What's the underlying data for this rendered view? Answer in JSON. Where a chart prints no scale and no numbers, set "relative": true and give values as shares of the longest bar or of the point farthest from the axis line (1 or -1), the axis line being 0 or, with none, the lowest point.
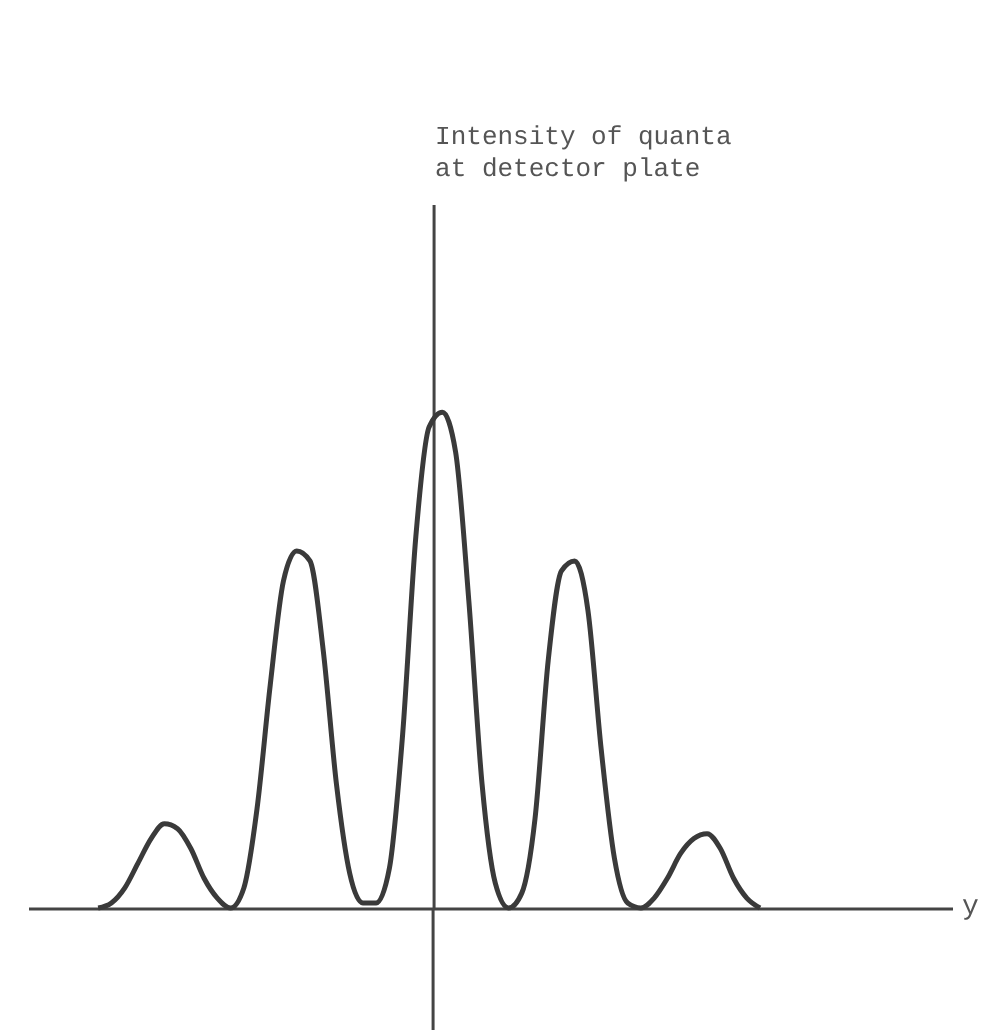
{
  "chart_data": {
    "type": "line",
    "relative": true,
    "annotations": [
      "Intensity of quanta\nat detector plate",
      "y"
    ],
    "color": "#3a3a3a",
    "categories": [
      null,
      null,
      null,
      null,
      null,
      null,
      null,
      null,
      null,
      null,
      null,
      null,
      null,
      null,
      null,
      null,
      null,
      null,
      null,
      null,
      null,
      null,
      null,
      null,
      null,
      null,
      null,
      null,
      null,
      null,
      null,
      null,
      null,
      null,
      null,
      null,
      null,
      null,
      null,
      null,
      null,
      null,
      null,
      null,
      null,
      null,
      null,
      null,
      null,
      null,
      null
    ],
    "values": [
      0,
      0.01,
      0.04,
      0.09,
      0.14,
      0.17,
      0.16,
      0.12,
      0.06,
      0.02,
      0,
      0.04,
      0.2,
      0.45,
      0.66,
      0.72,
      0.7,
      0.52,
      0.25,
      0.07,
      0.01,
      0.01,
      0.08,
      0.35,
      0.75,
      0.97,
      1,
      0.92,
      0.62,
      0.25,
      0.05,
      0,
      0.03,
      0.18,
      0.5,
      0.68,
      0.7,
      0.6,
      0.32,
      0.1,
      0.01,
      0,
      0.02,
      0.06,
      0.11,
      0.14,
      0.15,
      0.12,
      0.06,
      0.02,
      0
    ]
  }
}
